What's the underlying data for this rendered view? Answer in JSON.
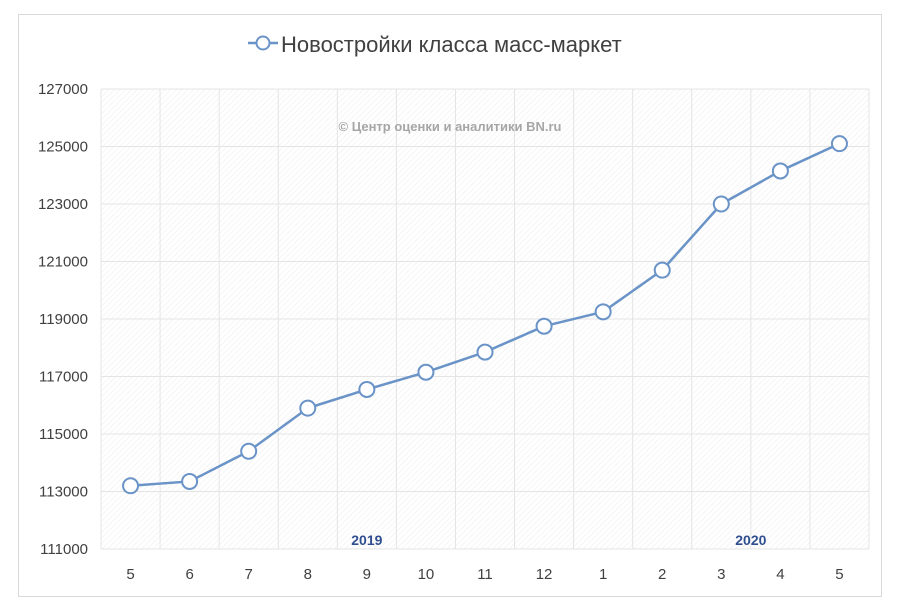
{
  "chart_data": {
    "type": "line",
    "title": "",
    "xlabel": "",
    "ylabel": "",
    "series": [
      {
        "name": "Новостройки класса масс-маркет",
        "values": [
          113200,
          113350,
          114400,
          115900,
          116550,
          117150,
          117850,
          118750,
          119250,
          120700,
          123000,
          124150,
          125100
        ]
      }
    ],
    "categories": [
      "5",
      "6",
      "7",
      "8",
      "9",
      "10",
      "11",
      "12",
      "1",
      "2",
      "3",
      "4",
      "5"
    ],
    "ylim": [
      111000,
      127000
    ],
    "yticks": [
      "111000",
      "113000",
      "115000",
      "117000",
      "119000",
      "121000",
      "123000",
      "125000",
      "127000"
    ],
    "year_labels": [
      {
        "text": "2019",
        "category_index": 4
      },
      {
        "text": "2020",
        "category_index": 10.5
      }
    ],
    "watermark": "© Центр оценки и аналитики BN.ru",
    "legend_position": "top",
    "grid": true,
    "colors": {
      "line": "#6a93c7",
      "marker_fill": "#ffffff",
      "grid": "#e4e4e4",
      "year_label": "#2f4f8f",
      "watermark": "#a6a6a6"
    }
  }
}
